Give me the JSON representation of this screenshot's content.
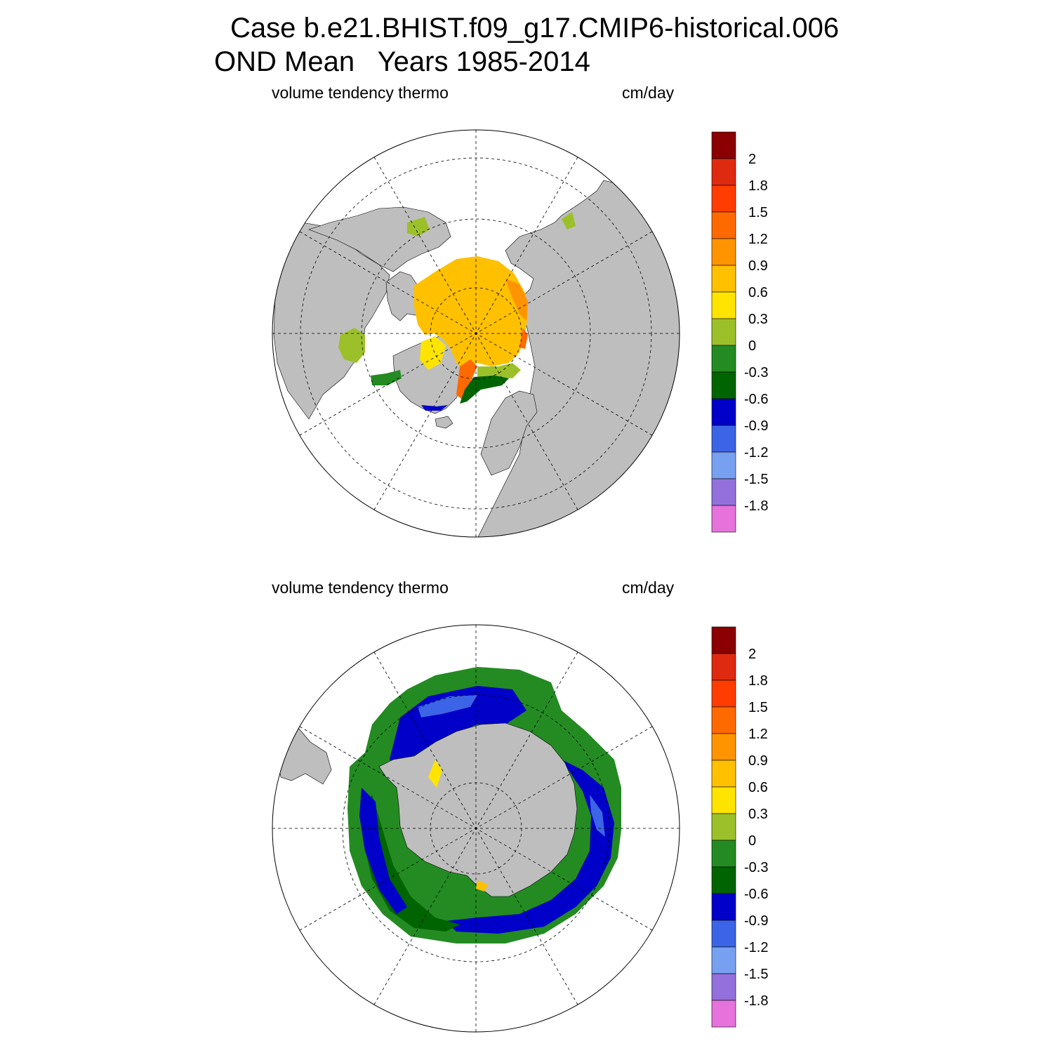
{
  "title": {
    "case": "Case b.e21.BHIST.f09_g17.CMIP6-historical.006",
    "period": "OND Mean   Years 1985-2014"
  },
  "panels": [
    {
      "variable": "volume tendency thermo",
      "units": "cm/day",
      "hemisphere": "Arctic (north polar stereographic)"
    },
    {
      "variable": "volume tendency thermo",
      "units": "cm/day",
      "hemisphere": "Antarctic (south polar stereographic)"
    }
  ],
  "colorbar": {
    "labels": [
      "2",
      "1.8",
      "1.5",
      "1.2",
      "0.9",
      "0.6",
      "0.3",
      "0",
      "-0.3",
      "-0.6",
      "-0.9",
      "-1.2",
      "-1.5",
      "-1.8"
    ],
    "colors": [
      "#8b0000",
      "#dd2a10",
      "#ff3d00",
      "#ff6a00",
      "#ff9400",
      "#ffc000",
      "#ffe400",
      "#9cc02a",
      "#238b22",
      "#006400",
      "#0000c8",
      "#3c64e6",
      "#78a0f0",
      "#9370db",
      "#e672dc"
    ]
  },
  "colors": {
    "land": "#bebebe",
    "ocean": "#ffffff",
    "frame": "#000000"
  }
}
